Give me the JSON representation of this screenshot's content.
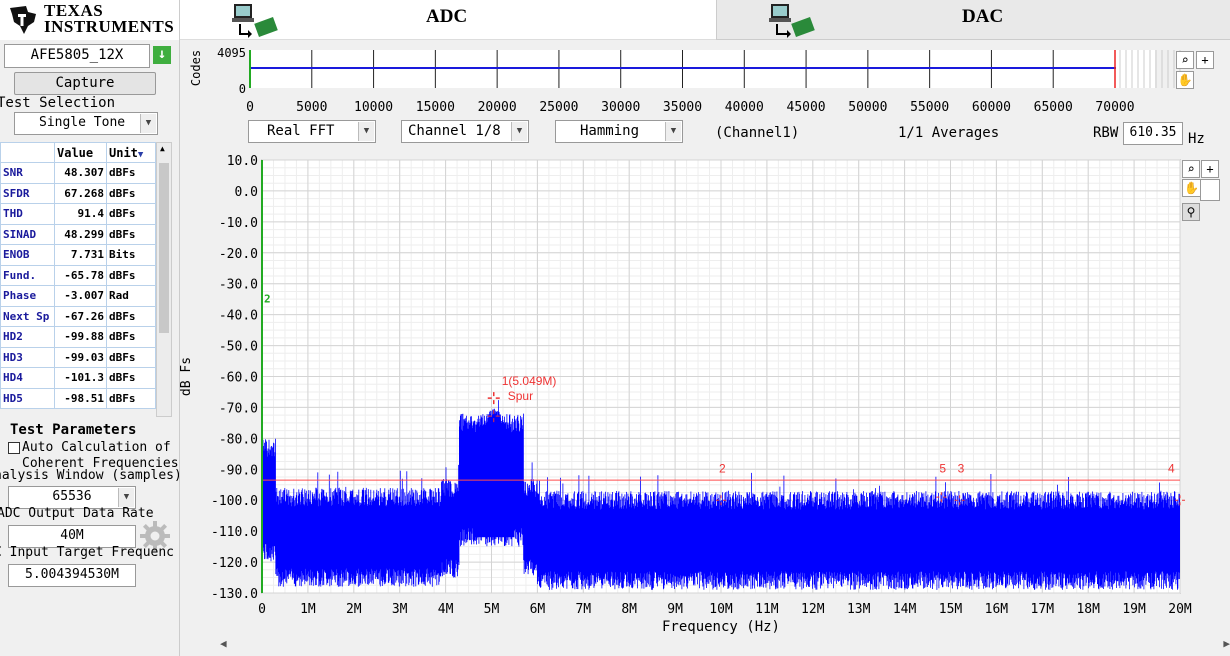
{
  "header": {
    "logo_line1": "Texas",
    "logo_line2": "Instruments",
    "tab_adc": "ADC",
    "tab_dac": "DAC"
  },
  "left_panel": {
    "device": "AFE5805_12X",
    "capture_label": "Capture",
    "test_selection_label": "Test Selection",
    "test_selection_value": "Single Tone",
    "table_headers": [
      "",
      "Value",
      "Unit"
    ],
    "metrics": [
      {
        "name": "SNR",
        "value": "48.307",
        "unit": "dBFs"
      },
      {
        "name": "SFDR",
        "value": "67.268",
        "unit": "dBFs"
      },
      {
        "name": "THD",
        "value": "91.4",
        "unit": "dBFs"
      },
      {
        "name": "SINAD",
        "value": "48.299",
        "unit": "dBFs"
      },
      {
        "name": "ENOB",
        "value": "7.731",
        "unit": "Bits"
      },
      {
        "name": "Fund.",
        "value": "-65.78",
        "unit": "dBFs"
      },
      {
        "name": "Phase",
        "value": "-3.007",
        "unit": "Rad"
      },
      {
        "name": "Next Sp",
        "value": "-67.26",
        "unit": "dBFs"
      },
      {
        "name": "HD2",
        "value": "-99.88",
        "unit": "dBFs"
      },
      {
        "name": "HD3",
        "value": "-99.03",
        "unit": "dBFs"
      },
      {
        "name": "HD4",
        "value": "-101.3",
        "unit": "dBFs"
      },
      {
        "name": "HD5",
        "value": "-98.51",
        "unit": "dBFs"
      }
    ],
    "test_parameters_label": "Test Parameters",
    "auto_calc_label_1": "Auto Calculation of",
    "auto_calc_label_2": "Coherent Frequencies",
    "analysis_window_label": "nalysis Window (samples)",
    "analysis_window_value": "65536",
    "output_rate_label": "ADC Output Data Rate",
    "output_rate_value": "40M",
    "input_freq_label": "C Input Target Frequenc",
    "input_freq_value": "5.004394530M"
  },
  "mini_plot": {
    "ylabel": "Codes",
    "y_ticks": [
      "4095",
      "0"
    ],
    "x_ticks": [
      "0",
      "5000",
      "10000",
      "15000",
      "20000",
      "25000",
      "30000",
      "35000",
      "40000",
      "45000",
      "50000",
      "55000",
      "60000",
      "65000",
      "70000"
    ],
    "trace_color": "#1a1adc"
  },
  "controls": {
    "fft_type": "Real FFT",
    "channel": "Channel 1/8",
    "window": "Hamming",
    "channel_label": "(Channel1)",
    "averages": "1/1 Averages",
    "rbw_label": "RBW",
    "rbw_value": "610.35",
    "rbw_unit": "Hz"
  },
  "chart_data": {
    "type": "line",
    "xlabel": "Frequency (Hz)",
    "ylabel": "dB Fs",
    "xlim": [
      0,
      20
    ],
    "ylim": [
      -130,
      10
    ],
    "x_ticks": [
      "0",
      "1M",
      "2M",
      "3M",
      "4M",
      "5M",
      "6M",
      "7M",
      "8M",
      "9M",
      "10M",
      "11M",
      "12M",
      "13M",
      "14M",
      "15M",
      "16M",
      "17M",
      "18M",
      "19M",
      "20M"
    ],
    "y_ticks": [
      "10.0",
      "0.0",
      "-10.0",
      "-20.0",
      "-30.0",
      "-40.0",
      "-50.0",
      "-60.0",
      "-70.0",
      "-80.0",
      "-90.0",
      "-100.0",
      "-110.0",
      "-120.0",
      "-130.0"
    ],
    "grid": true,
    "series_color": "#0000ff",
    "threshold_line": -93.5,
    "threshold_color": "#ff4d4d",
    "markers": [
      {
        "label": "1(5.049M)",
        "sub": "Spur",
        "x": 5.049,
        "y": -67
      },
      {
        "label": "2",
        "x": 10.0,
        "y": -100
      },
      {
        "label": "5",
        "x": 14.8,
        "y": -99
      },
      {
        "label": "3",
        "x": 15.2,
        "y": -100
      },
      {
        "label": "4",
        "x": 20.0,
        "y": -100
      }
    ],
    "noise_floor": [
      {
        "x0": 0.0,
        "x1": 0.3,
        "top": -80,
        "bottom": -120
      },
      {
        "x0": 0.3,
        "x1": 3.9,
        "top": -96,
        "bottom": -128
      },
      {
        "x0": 3.9,
        "x1": 4.3,
        "top": -93,
        "bottom": -125
      },
      {
        "x0": 4.3,
        "x1": 5.7,
        "top": -72,
        "bottom": -115
      },
      {
        "x0": 5.7,
        "x1": 6.0,
        "top": -93,
        "bottom": -125
      },
      {
        "x0": 6.0,
        "x1": 20.0,
        "top": -97,
        "bottom": -129
      }
    ]
  }
}
